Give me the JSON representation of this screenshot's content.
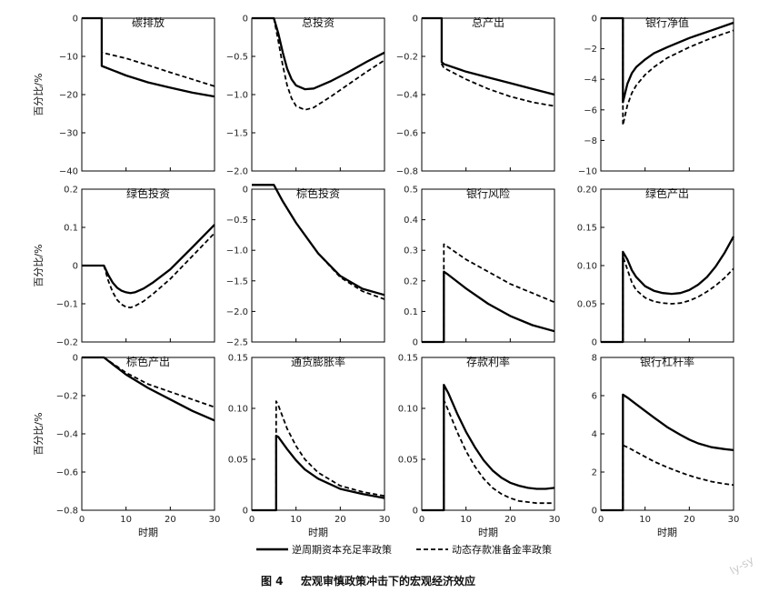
{
  "figure": {
    "caption_num": "图 4",
    "caption_text": "宏观审慎政策冲击下的宏观经济效应",
    "watermark": "ly-sy",
    "xlabel": "时期",
    "ylabel": "百分比/%",
    "legend": [
      {
        "label": "逆周期资本充足率政策",
        "style": "solid"
      },
      {
        "label": "动态存款准备金率政策",
        "style": "dashed"
      }
    ]
  },
  "chart_data": [
    {
      "type": "line",
      "title": "碳排放",
      "xlim": [
        0,
        30
      ],
      "ylim": [
        -40,
        0
      ],
      "yticks": [
        0,
        -10,
        -20,
        -30,
        -40
      ],
      "ytick_labels": [
        "0",
        "−10",
        "−20",
        "−30",
        "−40"
      ],
      "xticks": [],
      "series": [
        {
          "name": "逆周期资本充足率政策",
          "x": [
            0,
            4.5,
            4.5,
            10,
            15,
            20,
            25,
            30
          ],
          "y": [
            0,
            0,
            -12.5,
            -15,
            -16.8,
            -18.2,
            -19.5,
            -20.5
          ]
        },
        {
          "name": "动态存款准备金率政策",
          "x": [
            0,
            4.5,
            4.5,
            10,
            15,
            20,
            25,
            30
          ],
          "y": [
            0,
            0,
            -9,
            -10.5,
            -12.3,
            -14.2,
            -16,
            -17.8
          ]
        }
      ]
    },
    {
      "type": "line",
      "title": "总投资",
      "xlim": [
        0,
        30
      ],
      "ylim": [
        -2.0,
        0
      ],
      "yticks": [
        0,
        -0.5,
        -1.0,
        -1.5,
        -2.0
      ],
      "ytick_labels": [
        "0",
        "−0.5",
        "−1.0",
        "−1.5",
        "−2.0"
      ],
      "xticks": [],
      "series": [
        {
          "name": "逆周期资本充足率政策",
          "x": [
            0,
            5,
            6,
            7,
            8,
            9,
            10,
            12,
            14,
            18,
            22,
            26,
            30
          ],
          "y": [
            0,
            0,
            -0.2,
            -0.45,
            -0.66,
            -0.8,
            -0.88,
            -0.93,
            -0.92,
            -0.82,
            -0.7,
            -0.57,
            -0.45
          ]
        },
        {
          "name": "动态存款准备金率政策",
          "x": [
            0,
            5,
            6,
            7,
            8,
            9,
            10,
            12,
            14,
            18,
            22,
            26,
            30
          ],
          "y": [
            0,
            0,
            -0.3,
            -0.62,
            -0.88,
            -1.05,
            -1.15,
            -1.2,
            -1.17,
            -1.02,
            -0.86,
            -0.7,
            -0.55
          ]
        }
      ]
    },
    {
      "type": "line",
      "title": "总产出",
      "xlim": [
        0,
        30
      ],
      "ylim": [
        -0.8,
        0
      ],
      "yticks": [
        0,
        -0.2,
        -0.4,
        -0.6,
        -0.8
      ],
      "ytick_labels": [
        "0",
        "−0.2",
        "−0.4",
        "−0.6",
        "−0.8"
      ],
      "xticks": [],
      "series": [
        {
          "name": "逆周期资本充足率政策",
          "x": [
            0,
            4.5,
            4.5,
            5,
            10,
            15,
            20,
            25,
            30
          ],
          "y": [
            0,
            0,
            -0.23,
            -0.24,
            -0.28,
            -0.31,
            -0.34,
            -0.37,
            -0.4
          ]
        },
        {
          "name": "动态存款准备金率政策",
          "x": [
            0,
            4.5,
            4.5,
            5,
            10,
            15,
            20,
            25,
            30
          ],
          "y": [
            0,
            0,
            -0.24,
            -0.26,
            -0.32,
            -0.37,
            -0.41,
            -0.44,
            -0.46
          ]
        }
      ]
    },
    {
      "type": "line",
      "title": "银行净值",
      "xlim": [
        0,
        30
      ],
      "ylim": [
        -10,
        0
      ],
      "yticks": [
        0,
        -2,
        -4,
        -6,
        -8,
        -10
      ],
      "ytick_labels": [
        "0",
        "−2",
        "−4",
        "−6",
        "−8",
        "−10"
      ],
      "xticks": [],
      "series": [
        {
          "name": "逆周期资本充足率政策",
          "x": [
            0,
            5,
            5,
            6,
            7,
            8,
            10,
            12,
            15,
            20,
            25,
            30
          ],
          "y": [
            0,
            0,
            -5.5,
            -4.3,
            -3.6,
            -3.2,
            -2.7,
            -2.3,
            -1.9,
            -1.3,
            -0.8,
            -0.3
          ]
        },
        {
          "name": "动态存款准备金率政策",
          "x": [
            0,
            5,
            5,
            6,
            7,
            8,
            10,
            12,
            15,
            20,
            25,
            30
          ],
          "y": [
            0,
            0,
            -7,
            -5.7,
            -4.9,
            -4.4,
            -3.7,
            -3.2,
            -2.6,
            -1.9,
            -1.3,
            -0.8
          ]
        }
      ]
    },
    {
      "type": "line",
      "title": "绿色投资",
      "xlim": [
        0,
        30
      ],
      "ylim": [
        -0.2,
        0.2
      ],
      "yticks": [
        0.2,
        0.1,
        0,
        -0.1,
        -0.2
      ],
      "ytick_labels": [
        "0.2",
        "0.1",
        "0",
        "−0.1",
        "−0.2"
      ],
      "xticks": [],
      "series": [
        {
          "name": "逆周期资本充足率政策",
          "x": [
            0,
            5,
            6,
            7,
            8,
            9,
            10,
            11,
            12,
            14,
            16,
            20,
            25,
            30
          ],
          "y": [
            0,
            0,
            -0.025,
            -0.045,
            -0.058,
            -0.066,
            -0.07,
            -0.072,
            -0.07,
            -0.06,
            -0.045,
            -0.01,
            0.048,
            0.107
          ]
        },
        {
          "name": "动态存款准备金率政策",
          "x": [
            0,
            5,
            6,
            7,
            8,
            9,
            10,
            11,
            12,
            14,
            16,
            20,
            25,
            30
          ],
          "y": [
            0,
            0,
            -0.04,
            -0.07,
            -0.09,
            -0.102,
            -0.108,
            -0.11,
            -0.106,
            -0.093,
            -0.075,
            -0.035,
            0.025,
            0.085
          ]
        }
      ]
    },
    {
      "type": "line",
      "title": "棕色投资",
      "xlim": [
        0,
        30
      ],
      "ylim": [
        -2.5,
        0
      ],
      "yticks": [
        0,
        -0.5,
        -1.0,
        -1.5,
        -2.0,
        -2.5
      ],
      "ytick_labels": [
        "0",
        "−0.5",
        "−1.0",
        "−1.5",
        "−2.0",
        "−2.5"
      ],
      "xticks": [],
      "series": [
        {
          "name": "逆周期资本充足率政策",
          "x": [
            0,
            5,
            7,
            10,
            15,
            20,
            25,
            30
          ],
          "y": [
            0.07,
            0.07,
            -0.2,
            -0.55,
            -1.05,
            -1.42,
            -1.63,
            -1.73
          ]
        },
        {
          "name": "动态存款准备金率政策",
          "x": [
            0,
            5,
            7,
            10,
            15,
            20,
            25,
            30
          ],
          "y": [
            0.07,
            0.07,
            -0.2,
            -0.55,
            -1.05,
            -1.44,
            -1.67,
            -1.8
          ]
        }
      ]
    },
    {
      "type": "line",
      "title": "银行风险",
      "xlim": [
        0,
        30
      ],
      "ylim": [
        0,
        0.5
      ],
      "yticks": [
        0.5,
        0.4,
        0.3,
        0.2,
        0.1,
        0
      ],
      "ytick_labels": [
        "0.5",
        "0.4",
        "0.3",
        "0.2",
        "0.1",
        "0"
      ],
      "xticks": [],
      "series": [
        {
          "name": "逆周期资本充足率政策",
          "x": [
            0,
            5,
            5,
            6,
            10,
            15,
            20,
            25,
            30
          ],
          "y": [
            0,
            0,
            0.23,
            0.22,
            0.175,
            0.125,
            0.085,
            0.055,
            0.035
          ]
        },
        {
          "name": "动态存款准备金率政策",
          "x": [
            0,
            5,
            5,
            6,
            10,
            15,
            20,
            25,
            30
          ],
          "y": [
            0,
            0,
            0.32,
            0.31,
            0.27,
            0.23,
            0.19,
            0.16,
            0.13
          ]
        }
      ]
    },
    {
      "type": "line",
      "title": "绿色产出",
      "xlim": [
        0,
        30
      ],
      "ylim": [
        0,
        0.2
      ],
      "yticks": [
        0.2,
        0.15,
        0.1,
        0.05,
        0
      ],
      "ytick_labels": [
        "0.20",
        "0.15",
        "0.10",
        "0.05",
        "0"
      ],
      "xticks": [],
      "series": [
        {
          "name": "逆周期资本充足率政策",
          "x": [
            0,
            5,
            5,
            6,
            7,
            8,
            10,
            12,
            14,
            16,
            18,
            20,
            22,
            24,
            26,
            28,
            30
          ],
          "y": [
            0,
            0,
            0.118,
            0.108,
            0.094,
            0.085,
            0.073,
            0.067,
            0.064,
            0.063,
            0.064,
            0.068,
            0.075,
            0.085,
            0.099,
            0.117,
            0.138
          ]
        },
        {
          "name": "动态存款准备金率政策",
          "x": [
            0,
            5,
            5,
            6,
            7,
            8,
            10,
            12,
            14,
            16,
            18,
            20,
            22,
            24,
            26,
            28,
            30
          ],
          "y": [
            0,
            0,
            0.112,
            0.095,
            0.078,
            0.068,
            0.058,
            0.053,
            0.051,
            0.05,
            0.051,
            0.054,
            0.059,
            0.066,
            0.074,
            0.084,
            0.096
          ]
        }
      ]
    },
    {
      "type": "line",
      "title": "棕色产出",
      "xlim": [
        0,
        30
      ],
      "ylim": [
        -0.8,
        0
      ],
      "yticks": [
        0,
        -0.2,
        -0.4,
        -0.6,
        -0.8
      ],
      "ytick_labels": [
        "0",
        "−0.2",
        "−0.4",
        "−0.6",
        "−0.8"
      ],
      "xticks": [
        0,
        10,
        20,
        30
      ],
      "series": [
        {
          "name": "逆周期资本充足率政策",
          "x": [
            0,
            5,
            10,
            15,
            20,
            25,
            30
          ],
          "y": [
            0,
            0,
            -0.09,
            -0.16,
            -0.22,
            -0.28,
            -0.33
          ]
        },
        {
          "name": "动态存款准备金率政策",
          "x": [
            0,
            5,
            10,
            15,
            20,
            25,
            30
          ],
          "y": [
            0,
            0,
            -0.08,
            -0.14,
            -0.18,
            -0.22,
            -0.26
          ]
        }
      ]
    },
    {
      "type": "line",
      "title": "通货膨胀率",
      "xlim": [
        0,
        30
      ],
      "ylim": [
        0,
        0.15
      ],
      "yticks": [
        0.15,
        0.1,
        0.05,
        0
      ],
      "ytick_labels": [
        "0.15",
        "0.10",
        "0.05",
        "0"
      ],
      "xticks": [
        0,
        10,
        20,
        30
      ],
      "series": [
        {
          "name": "逆周期资本充足率政策",
          "x": [
            0,
            5.5,
            5.5,
            6,
            8,
            10,
            12,
            15,
            20,
            25,
            30
          ],
          "y": [
            0,
            0,
            0.073,
            0.072,
            0.06,
            0.049,
            0.04,
            0.031,
            0.021,
            0.016,
            0.012
          ]
        },
        {
          "name": "动态存款准备金率政策",
          "x": [
            0,
            5.5,
            5.5,
            6,
            8,
            10,
            12,
            15,
            20,
            25,
            30
          ],
          "y": [
            0,
            0,
            0.107,
            0.103,
            0.08,
            0.063,
            0.05,
            0.037,
            0.024,
            0.018,
            0.014
          ]
        }
      ]
    },
    {
      "type": "line",
      "title": "存款利率",
      "xlim": [
        0,
        30
      ],
      "ylim": [
        0,
        0.15
      ],
      "yticks": [
        0.15,
        0.1,
        0.05,
        0
      ],
      "ytick_labels": [
        "0.15",
        "0.10",
        "0.05",
        "0"
      ],
      "xticks": [
        0,
        10,
        20,
        30
      ],
      "series": [
        {
          "name": "逆周期资本充足率政策",
          "x": [
            0,
            5,
            5,
            6,
            8,
            10,
            12,
            14,
            16,
            18,
            20,
            22,
            24,
            26,
            28,
            30
          ],
          "y": [
            0,
            0,
            0.123,
            0.115,
            0.095,
            0.077,
            0.062,
            0.049,
            0.039,
            0.032,
            0.027,
            0.024,
            0.022,
            0.021,
            0.021,
            0.022
          ]
        },
        {
          "name": "动态存款准备金率政策",
          "x": [
            0,
            5,
            5,
            6,
            8,
            10,
            12,
            14,
            16,
            18,
            20,
            22,
            24,
            26,
            28,
            30
          ],
          "y": [
            0,
            0,
            0.108,
            0.098,
            0.077,
            0.058,
            0.043,
            0.031,
            0.022,
            0.016,
            0.012,
            0.009,
            0.008,
            0.007,
            0.007,
            0.007
          ]
        }
      ]
    },
    {
      "type": "line",
      "title": "银行杠杆率",
      "xlim": [
        0,
        30
      ],
      "ylim": [
        0,
        8
      ],
      "yticks": [
        8,
        6,
        4,
        2,
        0
      ],
      "ytick_labels": [
        "8",
        "6",
        "4",
        "2",
        "0"
      ],
      "xticks": [
        0,
        10,
        20,
        30
      ],
      "series": [
        {
          "name": "逆周期资本充足率政策",
          "x": [
            0,
            5,
            5,
            6,
            8,
            10,
            12,
            15,
            18,
            20,
            22,
            25,
            28,
            30
          ],
          "y": [
            0,
            0,
            6.05,
            5.9,
            5.55,
            5.2,
            4.85,
            4.35,
            3.95,
            3.7,
            3.5,
            3.3,
            3.2,
            3.15
          ]
        },
        {
          "name": "动态存款准备金率政策",
          "x": [
            0,
            5,
            5,
            6,
            8,
            10,
            12,
            15,
            18,
            20,
            22,
            25,
            28,
            30
          ],
          "y": [
            0,
            0,
            3.4,
            3.3,
            3.05,
            2.8,
            2.55,
            2.25,
            1.98,
            1.82,
            1.68,
            1.5,
            1.38,
            1.32
          ]
        }
      ]
    }
  ]
}
